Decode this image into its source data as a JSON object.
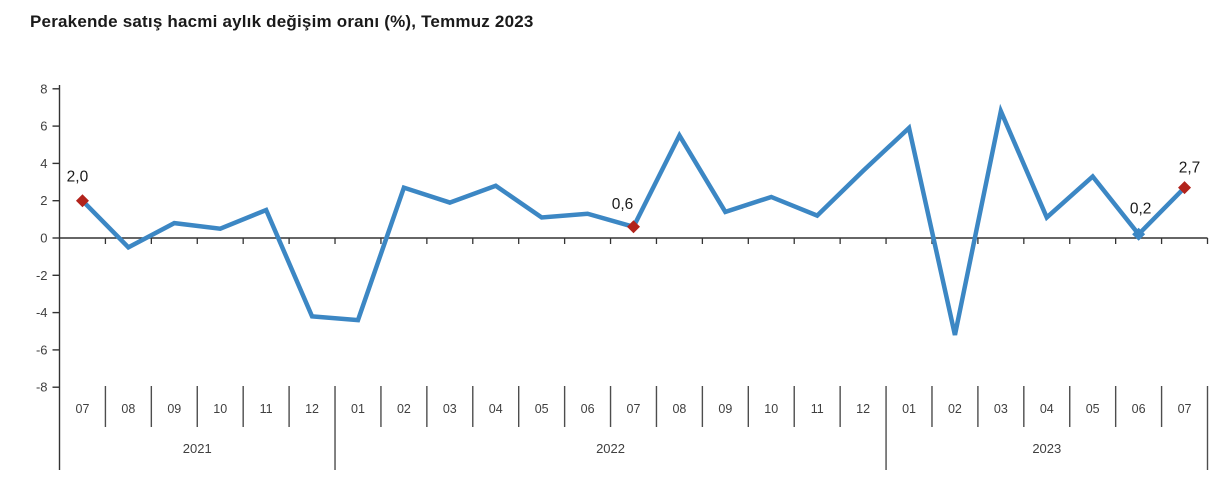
{
  "title": "Perakende satış hacmi aylık değişim oranı (%), Temmuz 2023",
  "colors": {
    "line": "#3c87c4",
    "marker_highlight": "#b2231c",
    "marker_blue": "#3c87c4",
    "axis": "#333333",
    "separator": "#4d4d4d",
    "tick_text": "#404040",
    "title_text": "#1a1a1a",
    "data_label_text": "#1a1a1a",
    "background": "#ffffff"
  },
  "chart_data": {
    "type": "line",
    "title": "Perakende satış hacmi aylık değişim oranı (%), Temmuz 2023",
    "xlabel": "",
    "ylabel": "",
    "ylim": [
      -8,
      8
    ],
    "ytick_step": 2,
    "y_tick_labels": [
      "8",
      "6",
      "4",
      "2",
      "0",
      "-2",
      "-4",
      "-6",
      "-8"
    ],
    "grid": false,
    "legend": false,
    "x_groups": [
      {
        "year": "2021",
        "months": [
          "07",
          "08",
          "09",
          "10",
          "11",
          "12"
        ]
      },
      {
        "year": "2022",
        "months": [
          "01",
          "02",
          "03",
          "04",
          "05",
          "06",
          "07",
          "08",
          "09",
          "10",
          "11",
          "12"
        ]
      },
      {
        "year": "2023",
        "months": [
          "01",
          "02",
          "03",
          "04",
          "05",
          "06",
          "07"
        ]
      }
    ],
    "series": [
      {
        "name": "Perakende satış hacmi aylık değişim oranı (%)",
        "color": "#3c87c4",
        "values": [
          2.0,
          -0.5,
          0.8,
          0.5,
          1.5,
          -4.2,
          -4.4,
          2.7,
          1.9,
          2.8,
          1.1,
          1.3,
          0.6,
          5.5,
          1.4,
          2.2,
          1.2,
          3.6,
          5.9,
          -5.2,
          6.8,
          1.1,
          3.3,
          0.2,
          2.7
        ]
      }
    ],
    "point_labels": [
      {
        "index": 0,
        "month": "07",
        "year": "2021",
        "text": "2,0",
        "marker": "diamond",
        "marker_color": "#b2231c"
      },
      {
        "index": 12,
        "month": "07",
        "year": "2022",
        "text": "0,6",
        "marker": "diamond",
        "marker_color": "#b2231c"
      },
      {
        "index": 23,
        "month": "06",
        "year": "2023",
        "text": "0,2",
        "marker": "diamond",
        "marker_color": "#3c87c4"
      },
      {
        "index": 24,
        "month": "07",
        "year": "2023",
        "text": "2,7",
        "marker": "diamond",
        "marker_color": "#b2231c"
      }
    ]
  }
}
